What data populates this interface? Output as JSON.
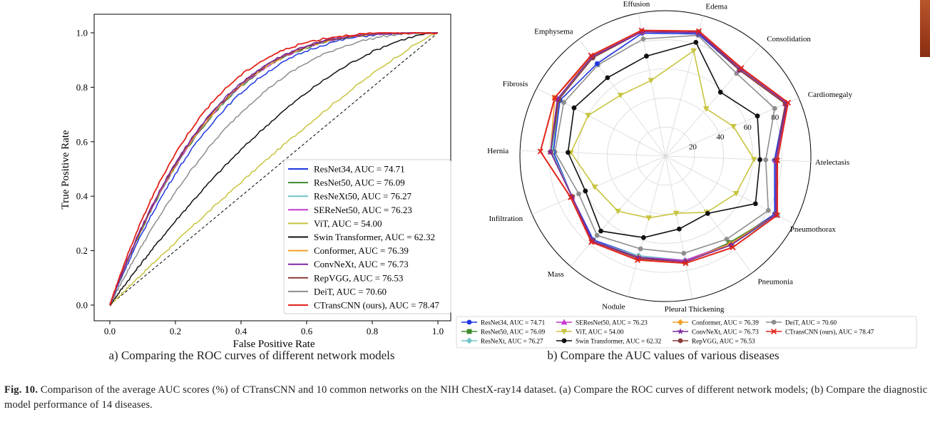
{
  "figure": {
    "caption_label": "Fig. 10.",
    "caption_text": "Comparison of the average AUC scores (%) of CTransCNN and 10 common networks on the NIH ChestX-ray14 dataset. (a) Compare the ROC curves of different network models; (b) Compare the diagnostic model performance of 14 diseases.",
    "subcaption_a": "a) Comparing the ROC curves of different network models",
    "subcaption_b": "b) Compare the AUC values of various diseases"
  },
  "colors": {
    "ResNet34": "#1f36e0",
    "ResNet50": "#3f8a2c",
    "ResNeXt50": "#6ec6c8",
    "SEReNet50": "#c33ad0",
    "ViT": "#c8c440",
    "Swin": "#111111",
    "Conformer": "#f0a22a",
    "ConvNeXt": "#7b2aa2",
    "RepVGG": "#8a3a3a",
    "DeiT": "#8e8e8e",
    "CTransCNN": "#e2231a"
  },
  "chart_data": [
    {
      "type": "line",
      "xlabel": "False Positive Rate",
      "ylabel": "True Positive Rate",
      "xlim": [
        0,
        1
      ],
      "ylim": [
        0,
        1
      ],
      "xticks": [
        "0.0",
        "0.2",
        "0.4",
        "0.6",
        "0.8",
        "1.0"
      ],
      "yticks": [
        "0.0",
        "0.2",
        "0.4",
        "0.6",
        "0.8",
        "1.0"
      ],
      "legend_position": "lower-right",
      "diagonal": "dashed",
      "series": [
        {
          "name": "ResNet34, AUC = 74.71",
          "key": "ResNet34",
          "auc": 74.71
        },
        {
          "name": "ResNet50, AUC = 76.09",
          "key": "ResNet50",
          "auc": 76.09
        },
        {
          "name": "ResNeXt50, AUC = 76.27",
          "key": "ResNeXt50",
          "auc": 76.27
        },
        {
          "name": "SEReNet50, AUC = 76.23",
          "key": "SEReNet50",
          "auc": 76.23
        },
        {
          "name": "ViT, AUC = 54.00",
          "key": "ViT",
          "auc": 54.0
        },
        {
          "name": "Swin Transformer, AUC = 62.32",
          "key": "Swin",
          "auc": 62.32
        },
        {
          "name": "Conformer, AUC = 76.39",
          "key": "Conformer",
          "auc": 76.39
        },
        {
          "name": "ConvNeXt, AUC = 76.73",
          "key": "ConvNeXt",
          "auc": 76.73
        },
        {
          "name": "RepVGG, AUC = 76.53",
          "key": "RepVGG",
          "auc": 76.53
        },
        {
          "name": "DeiT, AUC = 70.60",
          "key": "DeiT",
          "auc": 70.6
        },
        {
          "name": "CTransCNN (ours), AUC = 78.47",
          "key": "CTransCNN",
          "auc": 78.47
        }
      ]
    },
    {
      "type": "radar",
      "rlim": [
        0,
        100
      ],
      "rticks": [
        "20",
        "40",
        "60",
        "80"
      ],
      "legend_position": "bottom",
      "axes": [
        "Edema",
        "Consolidation",
        "Cardiomegaly",
        "Atelectasis",
        "Pneumothorax",
        "Pneumonia",
        "Pleural Thickening",
        "Nodule",
        "Mass",
        "Infiltration",
        "Hernia",
        "Fibrosis",
        "Emphysema",
        "Effusion"
      ],
      "series": [
        {
          "name": "ResNet34, AUC = 74.71",
          "key": "ResNet34",
          "marker": "circle",
          "values": [
            87,
            78,
            90,
            75,
            85,
            75,
            73,
            71,
            76,
            70,
            77,
            82,
            79,
            86
          ]
        },
        {
          "name": "ResNet50, AUC = 76.09",
          "key": "ResNet50",
          "marker": "square",
          "values": [
            88,
            79,
            90,
            76,
            86,
            74,
            74,
            72,
            77,
            70,
            78,
            83,
            85,
            87
          ]
        },
        {
          "name": "ResNeXt, AUC = 76.27",
          "key": "ResNeXt50",
          "marker": "diamond",
          "values": [
            88,
            78,
            90,
            76,
            87,
            76,
            73,
            71,
            77,
            70,
            78,
            84,
            84,
            87
          ]
        },
        {
          "name": "SEResNet50, AUC = 76.23",
          "key": "SEReNet50",
          "marker": "triangle-up",
          "values": [
            88,
            78,
            90,
            76,
            86,
            75,
            73,
            72,
            77,
            70,
            79,
            84,
            85,
            87
          ]
        },
        {
          "name": "ViT, AUC = 54.00",
          "key": "ViT",
          "marker": "triangle-down",
          "values": [
            75,
            43,
            51,
            61,
            55,
            48,
            40,
            44,
            50,
            53,
            65,
            60,
            52,
            53
          ]
        },
        {
          "name": "Swin Transformer, AUC = 62.32",
          "key": "Swin",
          "marker": "circle",
          "values": [
            81,
            58,
            69,
            65,
            70,
            49,
            51,
            58,
            68,
            60,
            67,
            71,
            67,
            70
          ]
        },
        {
          "name": "Conformer, AUC = 76.39",
          "key": "Conformer",
          "marker": "diamond",
          "values": [
            88,
            79,
            90,
            76,
            86,
            75,
            74,
            72,
            77,
            70,
            79,
            86,
            85,
            87
          ]
        },
        {
          "name": "ConvNeXt, AUC = 76.73",
          "key": "ConvNeXt",
          "marker": "star",
          "values": [
            88,
            79,
            91,
            76,
            86,
            76,
            74,
            72,
            77,
            70,
            79,
            84,
            85,
            87
          ]
        },
        {
          "name": "RepVGG, AUC = 76.53",
          "key": "RepVGG",
          "marker": "circle",
          "values": [
            88,
            78,
            90,
            76,
            86,
            76,
            74,
            73,
            77,
            70,
            79,
            83,
            84,
            87
          ]
        },
        {
          "name": "DeiT, AUC = 70.60",
          "key": "DeiT",
          "marker": "circle",
          "values": [
            86,
            75,
            82,
            69,
            80,
            71,
            68,
            66,
            72,
            65,
            76,
            79,
            78,
            82
          ]
        },
        {
          "name": "CTransCNN (ours), AUC = 78.47",
          "key": "CTransCNN",
          "marker": "x",
          "values": [
            89,
            80,
            92,
            77,
            87,
            78,
            75,
            74,
            78,
            71,
            86,
            86,
            86,
            88
          ]
        }
      ]
    }
  ]
}
